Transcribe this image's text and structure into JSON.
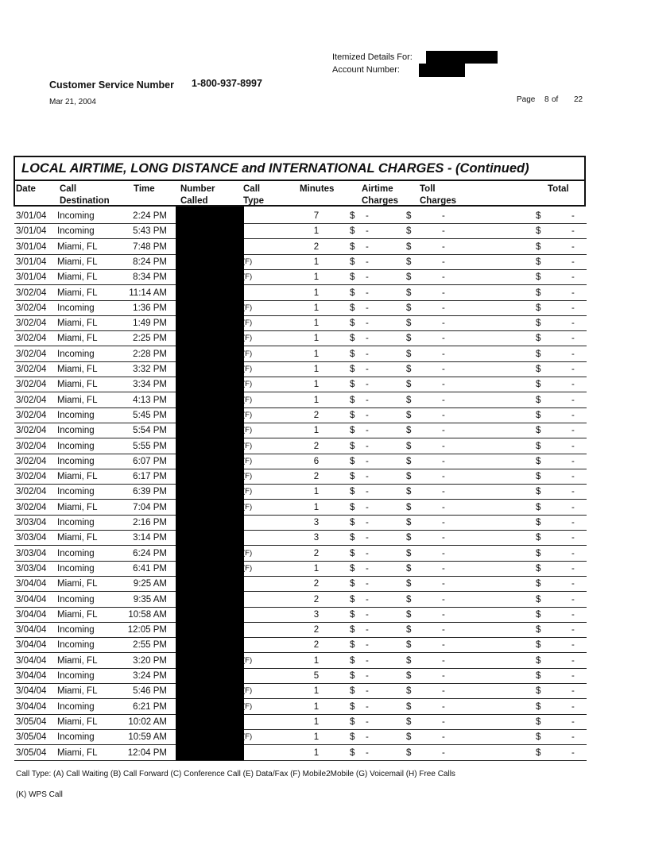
{
  "header": {
    "itemized_label": "Itemized Details For:",
    "account_label": "Account Number:",
    "customer_service_label": "Customer Service Number",
    "customer_service_number": "1-800-937-8997",
    "date": "Mar 21, 2004",
    "page_label": "Page",
    "page_number": "8",
    "of_label": "of",
    "page_total": "22"
  },
  "table": {
    "title": "LOCAL AIRTIME, LONG DISTANCE and INTERNATIONAL CHARGES  - (Continued)",
    "columns": {
      "date": "Date",
      "destination": [
        "Call",
        "Destination"
      ],
      "time": "Time",
      "number": [
        "Number",
        "Called"
      ],
      "type": [
        "Call",
        "Type"
      ],
      "minutes": "Minutes",
      "airtime": [
        "Airtime",
        "Charges"
      ],
      "toll": [
        "Toll",
        "Charges"
      ],
      "total": "Total"
    },
    "currency": "$",
    "empty_charge": "-",
    "rows": [
      [
        "3/01/04",
        "Incoming",
        "2:24 PM",
        "",
        "7"
      ],
      [
        "3/01/04",
        "Incoming",
        "5:43 PM",
        "",
        "1"
      ],
      [
        "3/01/04",
        "Miami, FL",
        "7:48 PM",
        "",
        "2"
      ],
      [
        "3/01/04",
        "Miami, FL",
        "8:24 PM",
        "(F)",
        "1"
      ],
      [
        "3/01/04",
        "Miami, FL",
        "8:34 PM",
        "(F)",
        "1"
      ],
      [
        "3/02/04",
        "Miami, FL",
        "11:14 AM",
        "",
        "1"
      ],
      [
        "3/02/04",
        "Incoming",
        "1:36 PM",
        "(F)",
        "1"
      ],
      [
        "3/02/04",
        "Miami, FL",
        "1:49 PM",
        "(F)",
        "1"
      ],
      [
        "3/02/04",
        "Miami, FL",
        "2:25 PM",
        "(F)",
        "1"
      ],
      [
        "3/02/04",
        "Incoming",
        "2:28 PM",
        "(F)",
        "1"
      ],
      [
        "3/02/04",
        "Miami, FL",
        "3:32 PM",
        "(F)",
        "1"
      ],
      [
        "3/02/04",
        "Miami, FL",
        "3:34 PM",
        "(F)",
        "1"
      ],
      [
        "3/02/04",
        "Miami, FL",
        "4:13 PM",
        "(F)",
        "1"
      ],
      [
        "3/02/04",
        "Incoming",
        "5:45 PM",
        "(F)",
        "2"
      ],
      [
        "3/02/04",
        "Incoming",
        "5:54 PM",
        "(F)",
        "1"
      ],
      [
        "3/02/04",
        "Incoming",
        "5:55 PM",
        "(F)",
        "2"
      ],
      [
        "3/02/04",
        "Incoming",
        "6:07 PM",
        "(F)",
        "6"
      ],
      [
        "3/02/04",
        "Miami, FL",
        "6:17 PM",
        "(F)",
        "2"
      ],
      [
        "3/02/04",
        "Incoming",
        "6:39 PM",
        "(F)",
        "1"
      ],
      [
        "3/02/04",
        "Miami, FL",
        "7:04 PM",
        "(F)",
        "1"
      ],
      [
        "3/03/04",
        "Incoming",
        "2:16 PM",
        "",
        "3"
      ],
      [
        "3/03/04",
        "Miami, FL",
        "3:14 PM",
        "",
        "3"
      ],
      [
        "3/03/04",
        "Incoming",
        "6:24 PM",
        "(F)",
        "2"
      ],
      [
        "3/03/04",
        "Incoming",
        "6:41 PM",
        "(F)",
        "1"
      ],
      [
        "3/04/04",
        "Miami, FL",
        "9:25 AM",
        "",
        "2"
      ],
      [
        "3/04/04",
        "Incoming",
        "9:35 AM",
        "",
        "2"
      ],
      [
        "3/04/04",
        "Miami, FL",
        "10:58 AM",
        "",
        "3"
      ],
      [
        "3/04/04",
        "Incoming",
        "12:05 PM",
        "",
        "2"
      ],
      [
        "3/04/04",
        "Incoming",
        "2:55 PM",
        "",
        "2"
      ],
      [
        "3/04/04",
        "Miami, FL",
        "3:20 PM",
        "(F)",
        "1"
      ],
      [
        "3/04/04",
        "Incoming",
        "3:24 PM",
        "",
        "5"
      ],
      [
        "3/04/04",
        "Miami, FL",
        "5:46 PM",
        "(F)",
        "1"
      ],
      [
        "3/04/04",
        "Incoming",
        "6:21 PM",
        "(F)",
        "1"
      ],
      [
        "3/05/04",
        "Miami, FL",
        "10:02 AM",
        "",
        "1"
      ],
      [
        "3/05/04",
        "Incoming",
        "10:59 AM",
        "(F)",
        "1"
      ],
      [
        "3/05/04",
        "Miami, FL",
        "12:04 PM",
        "",
        "1"
      ]
    ]
  },
  "footer": {
    "call_type_legend": "Call Type: (A) Call Waiting (B) Call Forward (C) Conference Call (E) Data/Fax (F) Mobile2Mobile (G) Voicemail (H) Free Calls",
    "call_type_legend_2": "(K) WPS Call"
  }
}
